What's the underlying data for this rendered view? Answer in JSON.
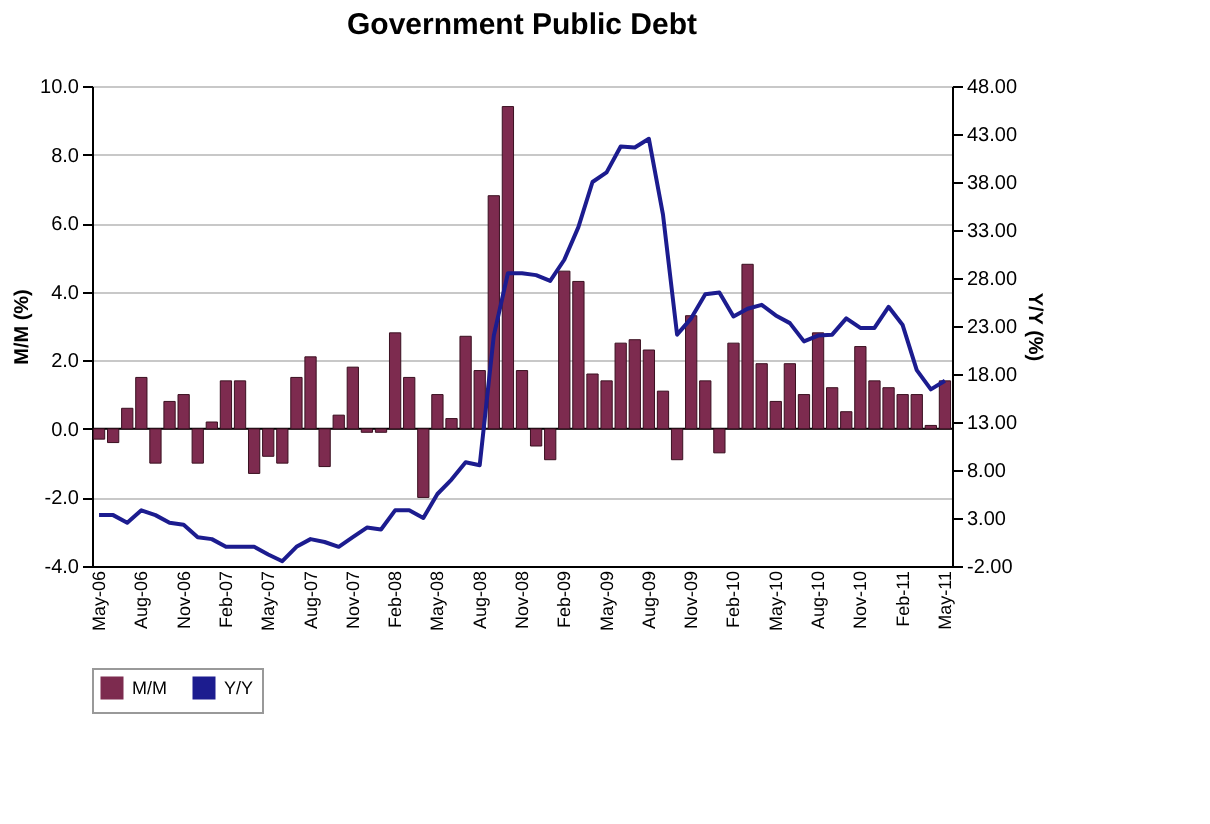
{
  "chart_data": {
    "type": "bar",
    "title": "Government Public Debt",
    "xlabel": null,
    "ylabel": "M/M (%)",
    "y2label": "Y/Y (%)",
    "categories": [
      "May-06",
      null,
      null,
      "Aug-06",
      null,
      null,
      "Nov-06",
      null,
      null,
      "Feb-07",
      null,
      null,
      "May-07",
      null,
      null,
      "Aug-07",
      null,
      null,
      "Nov-07",
      null,
      null,
      "Feb-08",
      null,
      null,
      "May-08",
      null,
      null,
      "Aug-08",
      null,
      null,
      "Nov-08",
      null,
      null,
      "Feb-09",
      null,
      null,
      "May-09",
      null,
      null,
      "Aug-09",
      null,
      null,
      "Nov-09",
      null,
      null,
      "Feb-10",
      null,
      null,
      "May-10",
      null,
      null,
      "Aug-10",
      null,
      null,
      "Nov-10",
      null,
      null,
      "Feb-11",
      null,
      null,
      "May-11"
    ],
    "series": [
      {
        "name": "M/M",
        "color": "#7d2b4f",
        "values": [
          -0.3,
          -0.4,
          0.6,
          1.5,
          -1.0,
          0.8,
          1.0,
          -1.0,
          0.2,
          1.4,
          1.4,
          -1.3,
          -0.8,
          -1.0,
          1.5,
          2.1,
          -1.1,
          0.4,
          1.8,
          -0.1,
          -0.1,
          2.8,
          1.5,
          -2.0,
          1.0,
          0.3,
          2.7,
          1.7,
          6.8,
          9.4,
          1.7,
          -0.5,
          -0.9,
          4.6,
          4.3,
          1.6,
          1.4,
          2.5,
          2.6,
          2.3,
          1.1,
          -0.9,
          3.3,
          1.4,
          -0.7,
          2.5,
          4.8,
          1.9,
          0.8,
          1.9,
          1.0,
          2.8,
          1.2,
          0.5,
          2.4,
          1.4,
          1.2,
          1.0,
          1.0,
          0.1,
          1.4
        ]
      },
      {
        "name": "Y/Y",
        "type": "line",
        "axis": "y2",
        "color": "#1c1c8f",
        "values": [
          3.3,
          3.3,
          2.5,
          3.8,
          3.3,
          2.5,
          2.3,
          1.0,
          0.8,
          0.0,
          0.0,
          0.0,
          -0.8,
          -1.5,
          0.0,
          0.8,
          0.5,
          0.0,
          1.0,
          2.0,
          1.8,
          3.8,
          3.8,
          3.0,
          5.5,
          7.0,
          8.8,
          8.5,
          22.0,
          28.5,
          28.5,
          28.3,
          27.7,
          29.9,
          33.3,
          38.0,
          39.0,
          41.7,
          41.6,
          42.5,
          34.6,
          22.1,
          23.8,
          26.3,
          26.5,
          24.0,
          24.8,
          25.2,
          24.1,
          23.3,
          21.4,
          22.0,
          22.1,
          23.8,
          22.8,
          22.8,
          25.0,
          23.1,
          18.4,
          16.4,
          17.3
        ]
      }
    ],
    "ylim": [
      -4,
      10
    ],
    "yticks": [
      {
        "value": -4,
        "label": "-4.0"
      },
      {
        "value": -2,
        "label": "-2.0"
      },
      {
        "value": 0,
        "label": "0.0"
      },
      {
        "value": 2,
        "label": "2.0"
      },
      {
        "value": 4,
        "label": "4.0"
      },
      {
        "value": 6,
        "label": "6.0"
      },
      {
        "value": 8,
        "label": "8.0"
      },
      {
        "value": 10,
        "label": "10.0"
      }
    ],
    "y2lim": [
      -2,
      48
    ],
    "y2ticks": [
      {
        "value": -2,
        "label": "-2.00"
      },
      {
        "value": 3,
        "label": "3.00"
      },
      {
        "value": 8,
        "label": "8.00"
      },
      {
        "value": 13,
        "label": "13.00"
      },
      {
        "value": 18,
        "label": "18.00"
      },
      {
        "value": 23,
        "label": "23.00"
      },
      {
        "value": 28,
        "label": "28.00"
      },
      {
        "value": 33,
        "label": "33.00"
      },
      {
        "value": 38,
        "label": "38.00"
      },
      {
        "value": 43,
        "label": "43.00"
      },
      {
        "value": 48,
        "label": "48.00"
      }
    ],
    "ref_lines": [
      {
        "axis": "y",
        "value": 0,
        "color": "#000000"
      }
    ],
    "grid": "y",
    "legend": "bottom",
    "line_style": "solid",
    "marker": "none"
  }
}
